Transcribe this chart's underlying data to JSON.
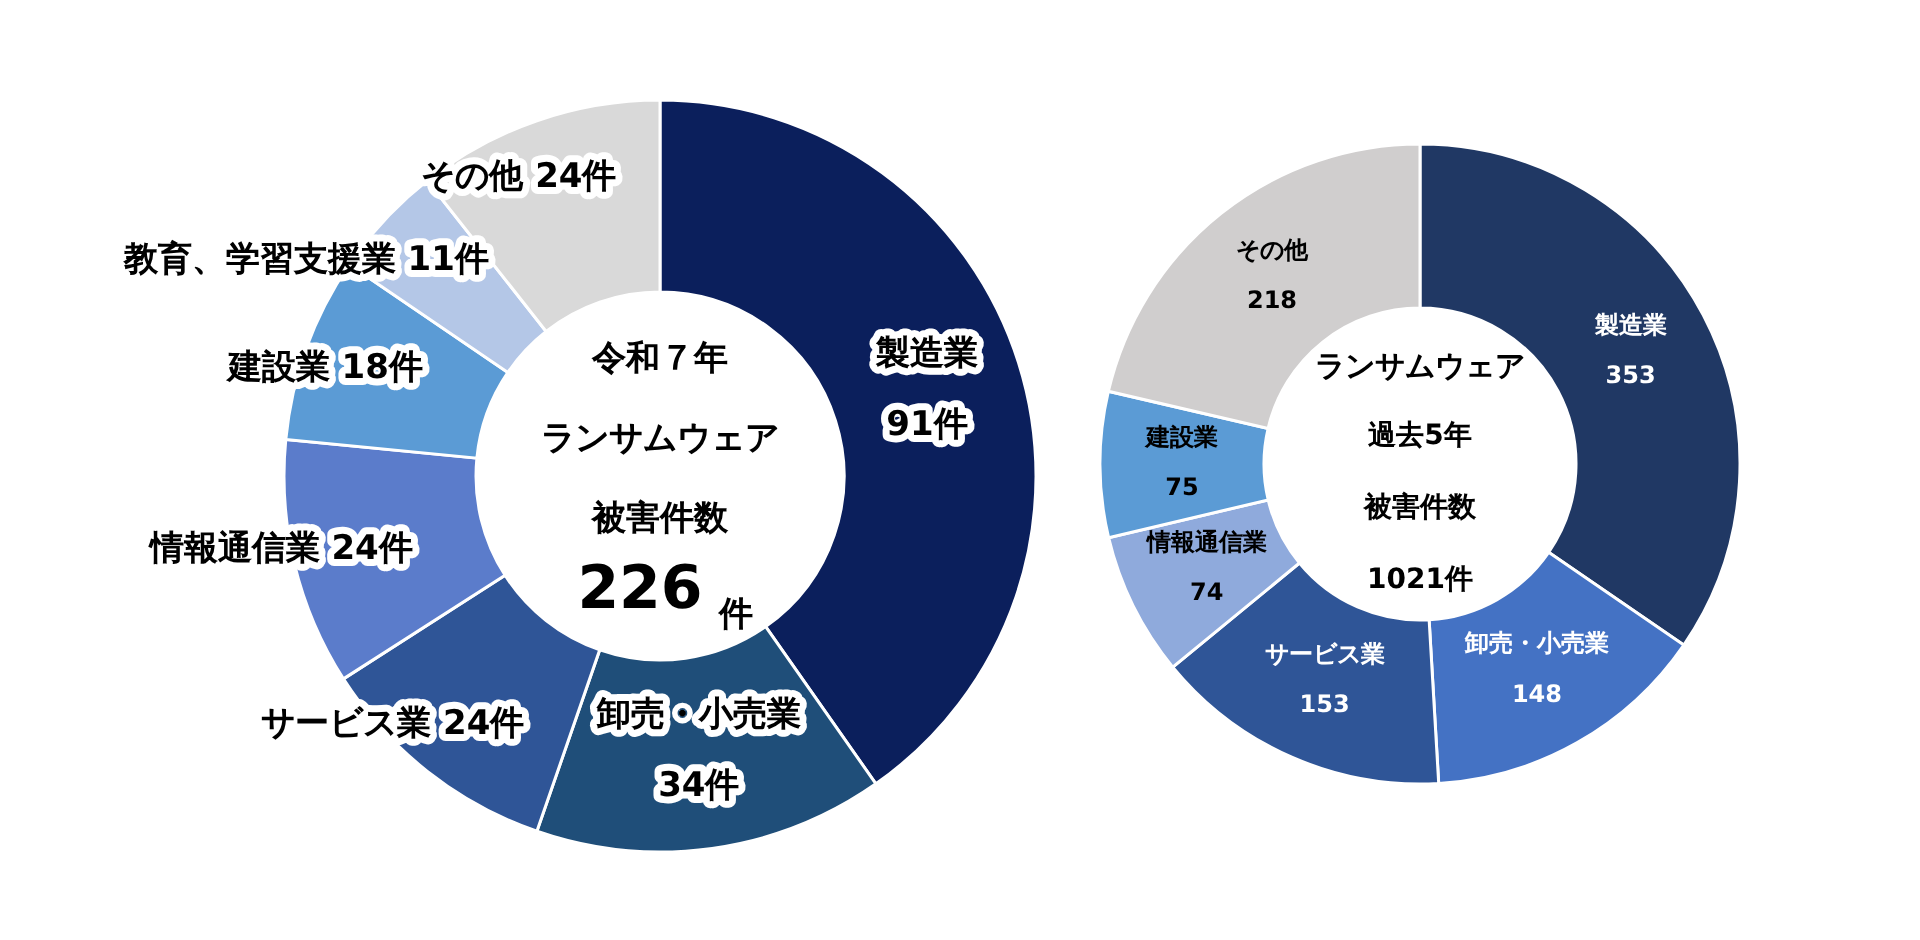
{
  "chart_data": [
    {
      "type": "donut",
      "categories": [
        "製造業",
        "卸売・小売業",
        "サービス業",
        "情報通信業",
        "建設業",
        "教育、学習支援業",
        "その他"
      ],
      "values": [
        91,
        34,
        24,
        24,
        18,
        11,
        24
      ],
      "value_labels": [
        "91件",
        "34件",
        "24件",
        "24件",
        "18件",
        "11件",
        "24件"
      ],
      "colors": [
        "#0b1f5c",
        "#1f4e79",
        "#2f5597",
        "#5b7ccb",
        "#5b9bd5",
        "#b4c7e7",
        "#d9d9d9"
      ],
      "annotations": [
        "令和７年",
        "ランサムウェア",
        "被害件数",
        "226",
        "件"
      ]
    },
    {
      "type": "donut",
      "categories": [
        "製造業",
        "卸売・小売業",
        "サービス業",
        "情報通信業",
        "建設業",
        "その他"
      ],
      "values": [
        353,
        148,
        153,
        74,
        75,
        218
      ],
      "data_labels": true,
      "colors": [
        "#203864",
        "#4472c4",
        "#2f5597",
        "#8faadc",
        "#5b9bd5",
        "#d0cece"
      ],
      "annotations": [
        "ランサムウェア",
        "過去5年",
        "被害件数",
        "1021件"
      ]
    }
  ]
}
